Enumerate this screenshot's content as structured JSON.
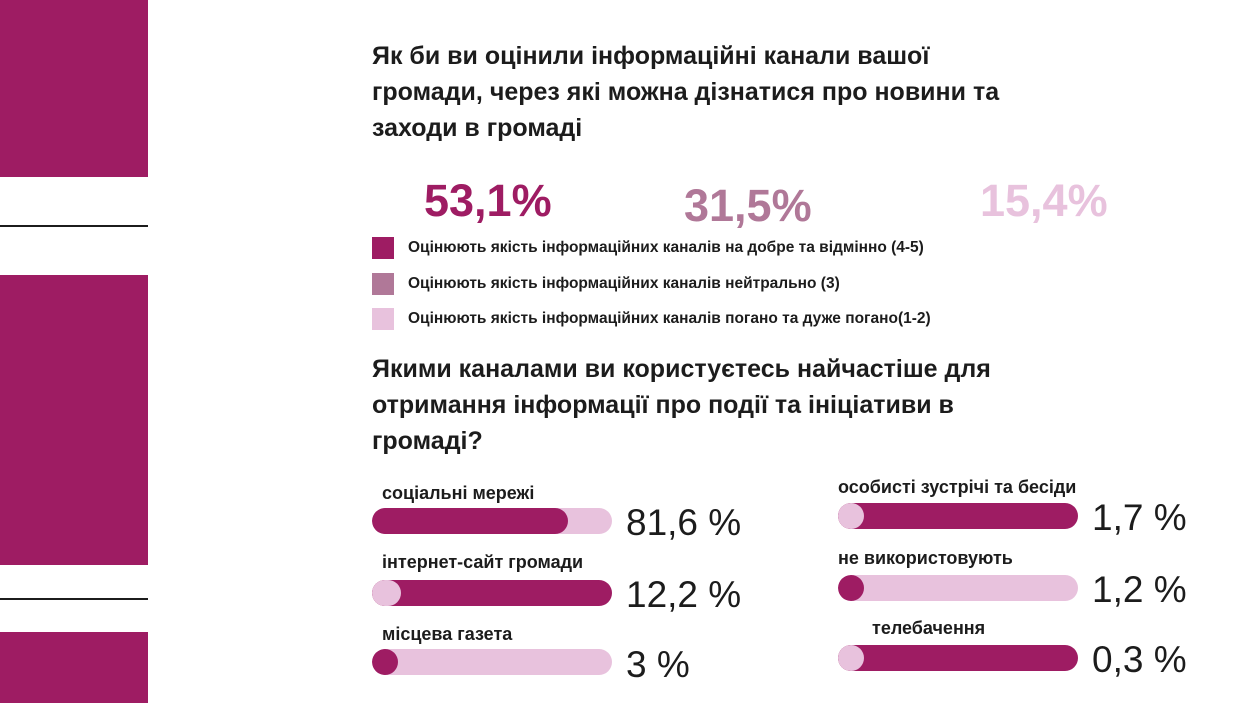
{
  "colors": {
    "accent": "#9e1c63",
    "neutral": "#b07898",
    "light": "#e8c2dd",
    "dark_text": "#1c1c1c"
  },
  "question1": "Як би ви оцінили інформаційні канали вашої громади, через які можна дізнатися про новини та заходи в громаді",
  "question2": "Якими каналами ви користуєтесь найчастіше для отримання інформації про події та ініціативи в громаді?",
  "chart_data": [
    {
      "type": "table",
      "values_percent": [
        "53,1%",
        "31,5%",
        "15,4%"
      ],
      "values": [
        53.1,
        31.5,
        15.4
      ],
      "legend": [
        "Оцінюють якість  інформаційних каналів на добре та відмінно (4-5)",
        "Оцінюють якість інформаційних каналів нейтрально (3)",
        "Оцінюють якість інформаційних каналів  погано та дуже погано(1-2)"
      ],
      "colors": [
        "#9e1c63",
        "#b07898",
        "#e8c2dd"
      ]
    },
    {
      "type": "bar",
      "categories": [
        "соціальні мережі",
        "інтернет-сайт громади",
        "місцева газета",
        "особисті зустрічі та бесіди",
        "не використовують",
        "телебачення"
      ],
      "values": [
        81.6,
        12.2,
        3,
        1.7,
        1.2,
        0.3
      ],
      "value_labels": [
        "81,6 %",
        "12,2 %",
        "3 %",
        "1,7 %",
        "1,2 %",
        "0,3 %"
      ]
    }
  ]
}
